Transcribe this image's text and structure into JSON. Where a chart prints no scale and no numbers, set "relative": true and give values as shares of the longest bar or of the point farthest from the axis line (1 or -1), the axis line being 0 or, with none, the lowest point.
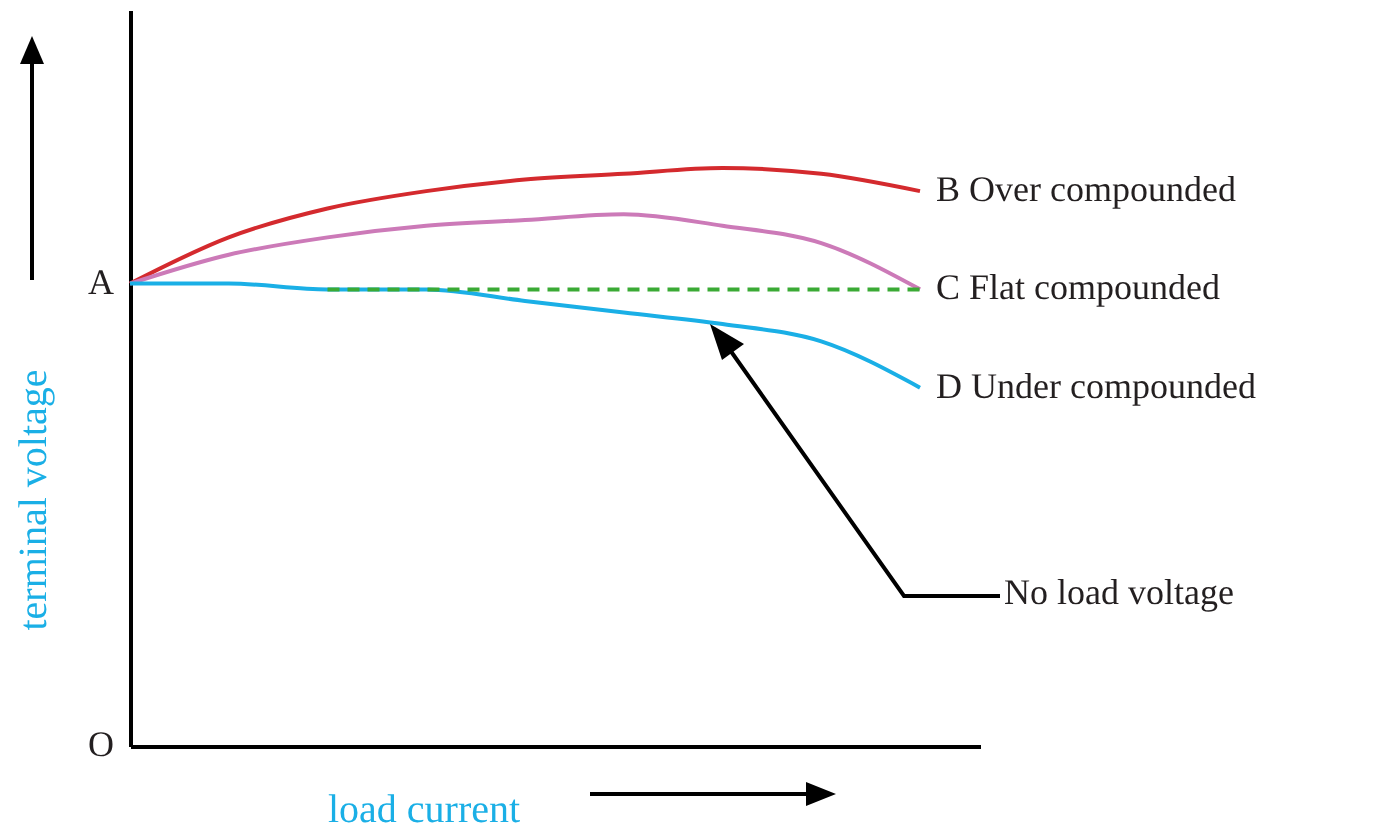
{
  "chart_data": {
    "type": "line",
    "relative": true,
    "xlabel": "load current",
    "ylabel": "terminal voltage",
    "categories": [
      null,
      null,
      null,
      null,
      null,
      null,
      null,
      null,
      null
    ],
    "series": [
      {
        "name": "B   Over compounded",
        "color": "#d42a2e",
        "values": [
          0.8,
          0.88,
          0.93,
          0.96,
          0.98,
          0.99,
          1.0,
          0.99,
          0.96
        ]
      },
      {
        "name": "C   Flat compounded",
        "color": "#cc7ab8",
        "values": [
          0.8,
          0.85,
          0.88,
          0.9,
          0.91,
          0.92,
          0.9,
          0.87,
          0.79
        ]
      },
      {
        "name": "D   Under compounded",
        "color": "#1aafe6",
        "values": [
          0.8,
          0.8,
          0.79,
          0.79,
          0.77,
          0.75,
          0.73,
          0.7,
          0.62
        ]
      },
      {
        "color": "#3aaa35",
        "line_style": "dashed",
        "values": [
          null,
          null,
          0.79,
          0.79,
          0.79,
          0.79,
          0.79,
          0.79,
          0.79
        ]
      }
    ],
    "annotations": [
      "A",
      "O",
      "No load voltage"
    ],
    "grid": false,
    "tick_labels": false
  }
}
